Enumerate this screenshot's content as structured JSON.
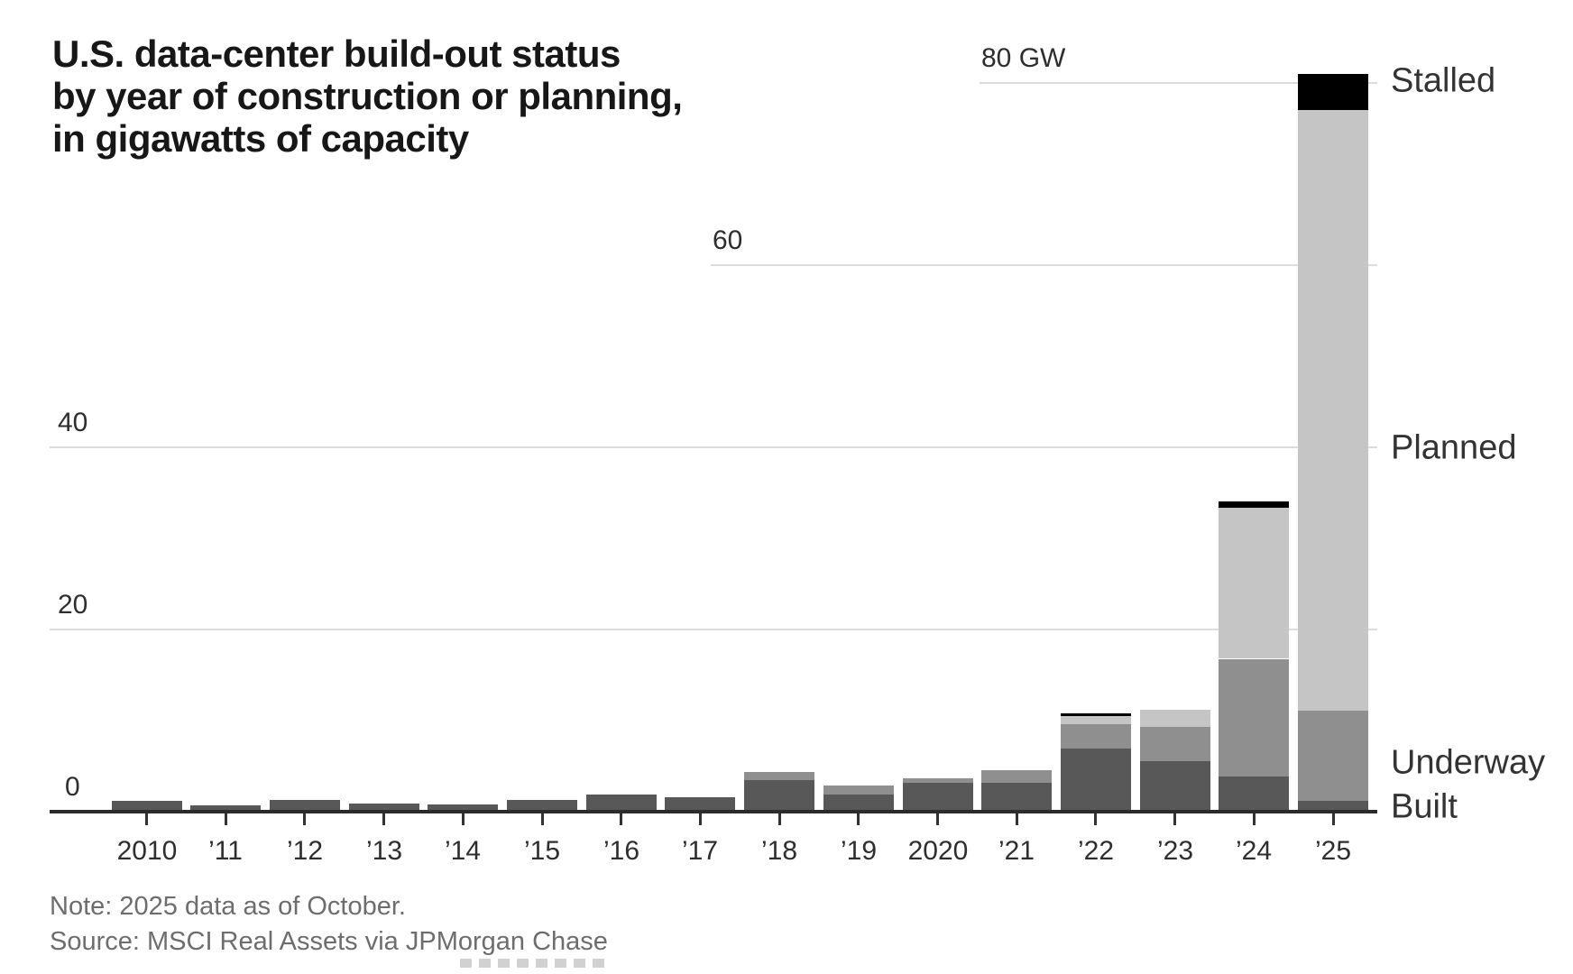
{
  "title": {
    "lines": [
      "U.S. data-center build-out status",
      "by year of construction or planning,",
      "in gigawatts of capacity"
    ]
  },
  "note": "Note: 2025 data as of October.",
  "source": "Source: MSCI Real Assets via JPMorgan Chase",
  "chart_data": {
    "type": "bar",
    "stacked": true,
    "title": "U.S. data-center build-out status by year of construction or planning, in gigawatts of capacity",
    "unit": "GW",
    "categories": [
      "2010",
      "’11",
      "’12",
      "’13",
      "’14",
      "’15",
      "’16",
      "’17",
      "’18",
      "’19",
      "2020",
      "’21",
      "’22",
      "’23",
      "’24",
      "’25"
    ],
    "series": [
      {
        "name": "Built",
        "color": "#585858",
        "values": [
          1.0,
          0.5,
          1.1,
          0.7,
          0.55,
          1.1,
          1.7,
          1.4,
          3.3,
          1.7,
          3.0,
          3.0,
          6.7,
          5.3,
          3.7,
          1.0
        ]
      },
      {
        "name": "Underway",
        "color": "#8f8f8f",
        "values": [
          0,
          0,
          0,
          0,
          0,
          0,
          0,
          0,
          0.9,
          1.0,
          0.5,
          1.4,
          2.7,
          3.8,
          12.9,
          9.9
        ]
      },
      {
        "name": "Planned",
        "color": "#c5c5c5",
        "values": [
          0,
          0,
          0,
          0,
          0,
          0,
          0,
          0,
          0,
          0,
          0,
          0,
          0.9,
          1.9,
          16.6,
          65.9
        ]
      },
      {
        "name": "Stalled",
        "color": "#000000",
        "values": [
          0,
          0,
          0,
          0,
          0,
          0,
          0,
          0,
          0,
          0,
          0,
          0,
          0.3,
          0,
          0.7,
          4.0
        ]
      }
    ],
    "y_axis": {
      "range": [
        0,
        84
      ],
      "ticks": [
        {
          "value": 0,
          "label": "0"
        },
        {
          "value": 20,
          "label": "20"
        },
        {
          "value": 40,
          "label": "40"
        },
        {
          "value": 60,
          "label": "60"
        },
        {
          "value": 80,
          "label": "80 GW"
        }
      ]
    },
    "legend": [
      {
        "label": "Stalled"
      },
      {
        "label": "Planned"
      },
      {
        "label": "Underway"
      },
      {
        "label": "Built"
      }
    ],
    "grid": true,
    "legend_position": "right"
  }
}
